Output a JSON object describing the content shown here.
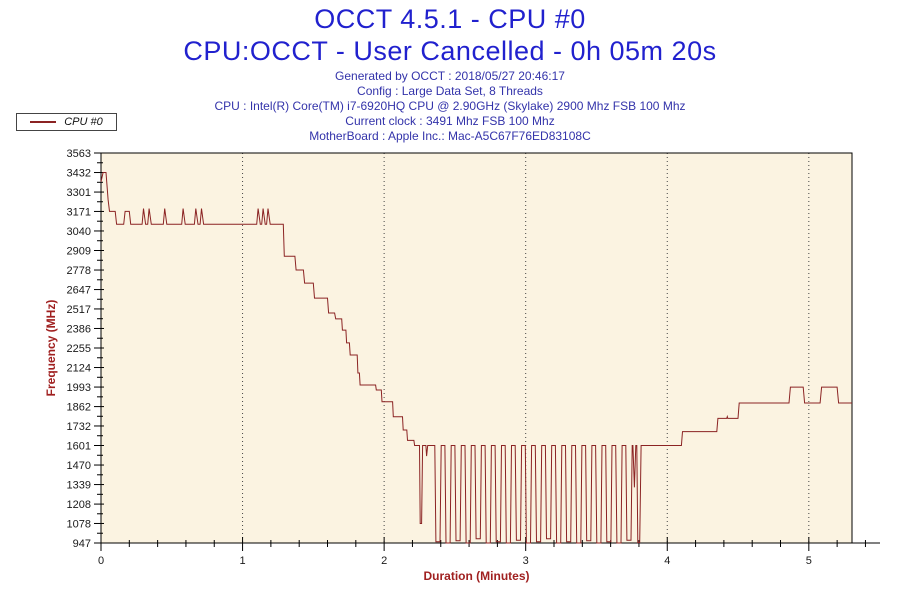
{
  "header": {
    "title": "OCCT 4.5.1 - CPU #0",
    "subtitle": "CPU:OCCT - User Cancelled - 0h 05m 20s"
  },
  "info": {
    "lines": [
      "Generated by OCCT : 2018/05/27 20:46:17",
      "Config : Large Data Set, 8 Threads",
      "CPU : Intel(R) Core(TM) i7-6920HQ CPU @ 2.90GHz (Skylake) 2900 Mhz FSB 100 Mhz",
      "Current clock : 3491 Mhz FSB 100 Mhz",
      "MotherBoard : Apple Inc.: Mac-A5C67F76ED83108C"
    ]
  },
  "legend": {
    "label": "CPU #0"
  },
  "colors": {
    "title_blue": "#2121CE",
    "info_blue": "#3333AA",
    "axis_label_red": "#A02020",
    "series_dark_red": "#8B2323",
    "plot_bg": "#FBF3E1",
    "tick_text": "#1A1A1A",
    "axis_line": "#000000",
    "gridline": "#444444"
  },
  "chart_data": {
    "type": "line",
    "title": "OCCT 4.5.1 - CPU #0",
    "xlabel": "Duration (Minutes)",
    "ylabel": "Frequency (MHz)",
    "xlim": [
      0,
      5.305
    ],
    "ylim": [
      947,
      3563
    ],
    "x_ticks": [
      0,
      1,
      2,
      3,
      4,
      5
    ],
    "x_minor_step": 0.2,
    "y_ticks": [
      3563,
      3432,
      3301,
      3171,
      3040,
      2909,
      2778,
      2647,
      2517,
      2386,
      2255,
      2124,
      1993,
      1862,
      1732,
      1601,
      1470,
      1339,
      1208,
      1078,
      947
    ],
    "grid": "vertical dotted at major x ticks",
    "legend_position": "top-left above plot",
    "series": [
      {
        "name": "CPU #0",
        "color": "#8B2323",
        "points": [
          [
            0,
            3370
          ],
          [
            0.015,
            3432
          ],
          [
            0.035,
            3432
          ],
          [
            0.05,
            3250
          ],
          [
            0.06,
            3171
          ],
          [
            0.1,
            3171
          ],
          [
            0.11,
            3085
          ],
          [
            0.16,
            3085
          ],
          [
            0.17,
            3171
          ],
          [
            0.2,
            3171
          ],
          [
            0.21,
            3085
          ],
          [
            0.29,
            3085
          ],
          [
            0.3,
            3190
          ],
          [
            0.315,
            3085
          ],
          [
            0.33,
            3085
          ],
          [
            0.34,
            3190
          ],
          [
            0.355,
            3085
          ],
          [
            0.44,
            3085
          ],
          [
            0.45,
            3190
          ],
          [
            0.465,
            3085
          ],
          [
            0.57,
            3085
          ],
          [
            0.58,
            3190
          ],
          [
            0.595,
            3085
          ],
          [
            0.66,
            3085
          ],
          [
            0.67,
            3190
          ],
          [
            0.685,
            3085
          ],
          [
            0.7,
            3085
          ],
          [
            0.71,
            3190
          ],
          [
            0.725,
            3085
          ],
          [
            1.1,
            3085
          ],
          [
            1.11,
            3190
          ],
          [
            1.125,
            3085
          ],
          [
            1.135,
            3085
          ],
          [
            1.145,
            3190
          ],
          [
            1.16,
            3085
          ],
          [
            1.17,
            3085
          ],
          [
            1.18,
            3190
          ],
          [
            1.195,
            3085
          ],
          [
            1.288,
            3085
          ],
          [
            1.295,
            2870
          ],
          [
            1.37,
            2870
          ],
          [
            1.378,
            2778
          ],
          [
            1.43,
            2778
          ],
          [
            1.438,
            2690
          ],
          [
            1.5,
            2690
          ],
          [
            1.508,
            2590
          ],
          [
            1.6,
            2590
          ],
          [
            1.608,
            2490
          ],
          [
            1.65,
            2490
          ],
          [
            1.658,
            2450
          ],
          [
            1.7,
            2450
          ],
          [
            1.705,
            2375
          ],
          [
            1.73,
            2375
          ],
          [
            1.735,
            2289
          ],
          [
            1.755,
            2289
          ],
          [
            1.76,
            2208
          ],
          [
            1.81,
            2208
          ],
          [
            1.815,
            2087
          ],
          [
            1.825,
            2087
          ],
          [
            1.83,
            2007
          ],
          [
            1.94,
            2007
          ],
          [
            1.945,
            1973
          ],
          [
            1.98,
            1973
          ],
          [
            1.985,
            1895
          ],
          [
            2.06,
            1895
          ],
          [
            2.065,
            1794
          ],
          [
            2.13,
            1794
          ],
          [
            2.135,
            1705
          ],
          [
            2.16,
            1705
          ],
          [
            2.165,
            1635
          ],
          [
            2.21,
            1635
          ],
          [
            2.215,
            1601
          ],
          [
            2.25,
            1601
          ],
          [
            2.255,
            1078
          ],
          [
            2.265,
            1078
          ],
          [
            2.272,
            1601
          ],
          [
            2.295,
            1601
          ],
          [
            2.3,
            1530
          ],
          [
            2.308,
            1601
          ],
          [
            2.33,
            1601
          ],
          [
            2.358,
            1601
          ],
          [
            2.366,
            955
          ],
          [
            2.395,
            955
          ],
          [
            2.403,
            1601
          ],
          [
            2.429,
            1601
          ],
          [
            2.437,
            947
          ],
          [
            2.466,
            947
          ],
          [
            2.474,
            1601
          ],
          [
            2.5,
            1601
          ],
          [
            2.508,
            962
          ],
          [
            2.537,
            962
          ],
          [
            2.545,
            1601
          ],
          [
            2.571,
            1601
          ],
          [
            2.579,
            947
          ],
          [
            2.608,
            947
          ],
          [
            2.616,
            1601
          ],
          [
            2.642,
            1601
          ],
          [
            2.65,
            975
          ],
          [
            2.679,
            975
          ],
          [
            2.687,
            1601
          ],
          [
            2.713,
            1601
          ],
          [
            2.721,
            947
          ],
          [
            2.75,
            947
          ],
          [
            2.758,
            1601
          ],
          [
            2.784,
            1601
          ],
          [
            2.792,
            955
          ],
          [
            2.821,
            955
          ],
          [
            2.829,
            1601
          ],
          [
            2.855,
            1601
          ],
          [
            2.863,
            947
          ],
          [
            2.892,
            947
          ],
          [
            2.9,
            1601
          ],
          [
            2.926,
            1601
          ],
          [
            2.934,
            965
          ],
          [
            2.963,
            965
          ],
          [
            2.971,
            1601
          ],
          [
            2.997,
            1601
          ],
          [
            3.005,
            947
          ],
          [
            3.034,
            947
          ],
          [
            3.042,
            1601
          ],
          [
            3.068,
            1601
          ],
          [
            3.076,
            955
          ],
          [
            3.105,
            955
          ],
          [
            3.113,
            1601
          ],
          [
            3.139,
            1601
          ],
          [
            3.147,
            975
          ],
          [
            3.176,
            975
          ],
          [
            3.184,
            1601
          ],
          [
            3.21,
            1601
          ],
          [
            3.218,
            947
          ],
          [
            3.247,
            947
          ],
          [
            3.255,
            1601
          ],
          [
            3.281,
            1601
          ],
          [
            3.289,
            955
          ],
          [
            3.318,
            955
          ],
          [
            3.326,
            1601
          ],
          [
            3.352,
            1601
          ],
          [
            3.36,
            947
          ],
          [
            3.389,
            947
          ],
          [
            3.397,
            1601
          ],
          [
            3.423,
            1601
          ],
          [
            3.431,
            962
          ],
          [
            3.46,
            962
          ],
          [
            3.468,
            1601
          ],
          [
            3.494,
            1601
          ],
          [
            3.502,
            947
          ],
          [
            3.531,
            947
          ],
          [
            3.539,
            1601
          ],
          [
            3.565,
            1601
          ],
          [
            3.573,
            955
          ],
          [
            3.602,
            955
          ],
          [
            3.61,
            1601
          ],
          [
            3.636,
            1601
          ],
          [
            3.644,
            947
          ],
          [
            3.673,
            947
          ],
          [
            3.681,
            1601
          ],
          [
            3.707,
            1601
          ],
          [
            3.715,
            965
          ],
          [
            3.744,
            965
          ],
          [
            3.752,
            1601
          ],
          [
            3.757,
            1601
          ],
          [
            3.768,
            1320
          ],
          [
            3.778,
            1601
          ],
          [
            3.785,
            1601
          ],
          [
            3.792,
            950
          ],
          [
            3.805,
            950
          ],
          [
            3.815,
            1601
          ],
          [
            4.1,
            1601
          ],
          [
            4.108,
            1694
          ],
          [
            4.35,
            1694
          ],
          [
            4.358,
            1783
          ],
          [
            4.42,
            1783
          ],
          [
            4.424,
            1795
          ],
          [
            4.428,
            1783
          ],
          [
            4.5,
            1783
          ],
          [
            4.508,
            1886
          ],
          [
            4.86,
            1886
          ],
          [
            4.87,
            1993
          ],
          [
            4.96,
            1993
          ],
          [
            4.97,
            1886
          ],
          [
            5.08,
            1886
          ],
          [
            5.09,
            1993
          ],
          [
            5.2,
            1993
          ],
          [
            5.21,
            1886
          ],
          [
            5.305,
            1886
          ]
        ]
      }
    ]
  }
}
